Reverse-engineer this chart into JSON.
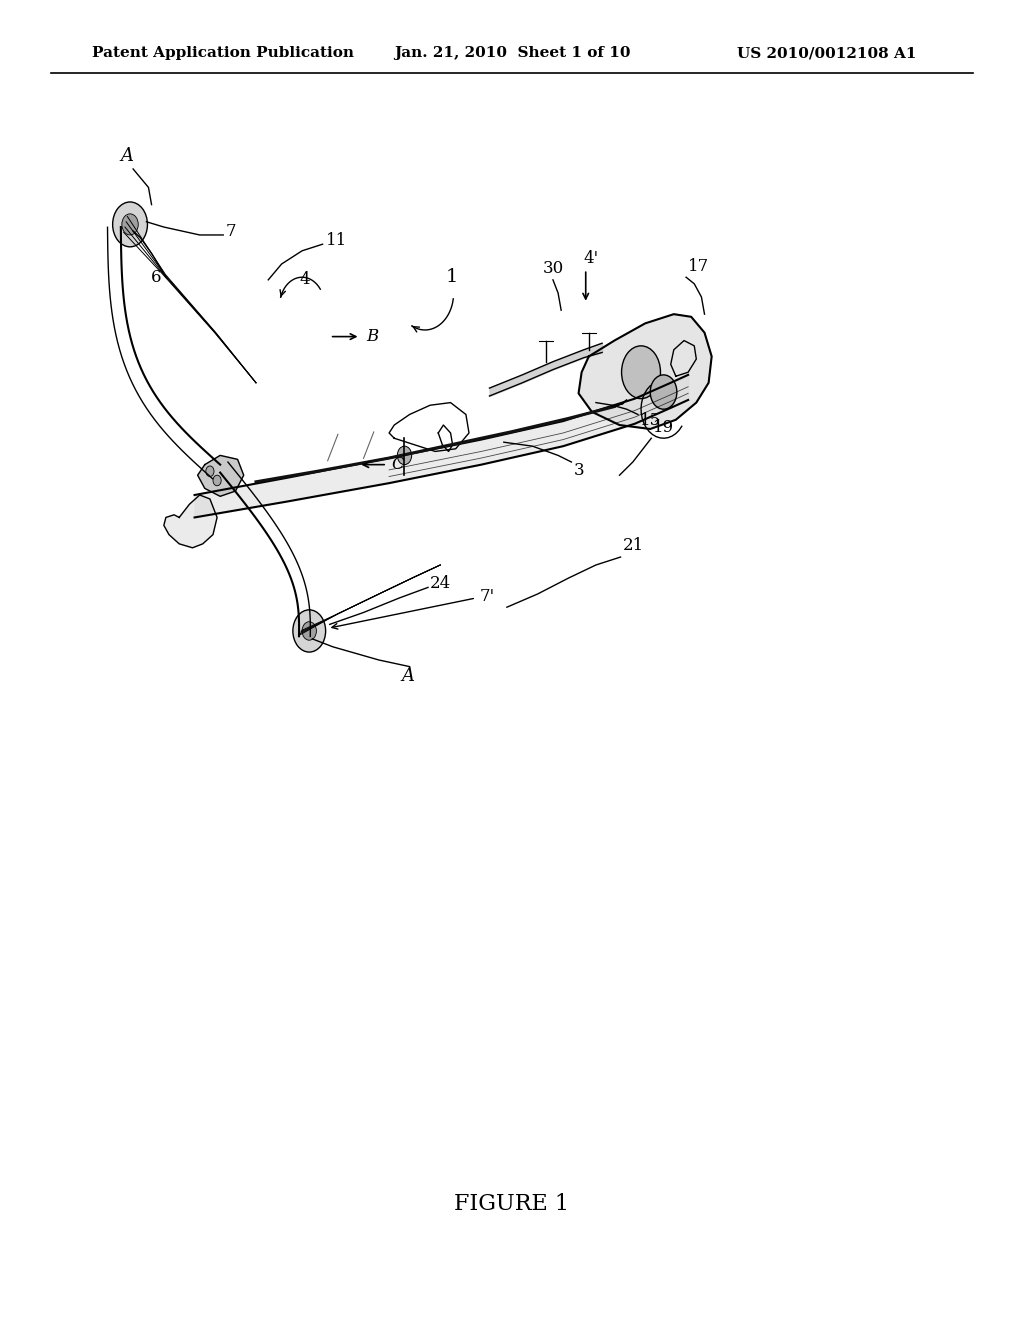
{
  "bg_color": "#ffffff",
  "header_left": "Patent Application Publication",
  "header_mid": "Jan. 21, 2010  Sheet 1 of 10",
  "header_right": "US 2010/0012108 A1",
  "figure_label": "FIGURE 1",
  "line_color": "#000000",
  "text_color": "#000000",
  "header_fontsize": 11,
  "label_fontsize": 12,
  "figure_label_fontsize": 16
}
